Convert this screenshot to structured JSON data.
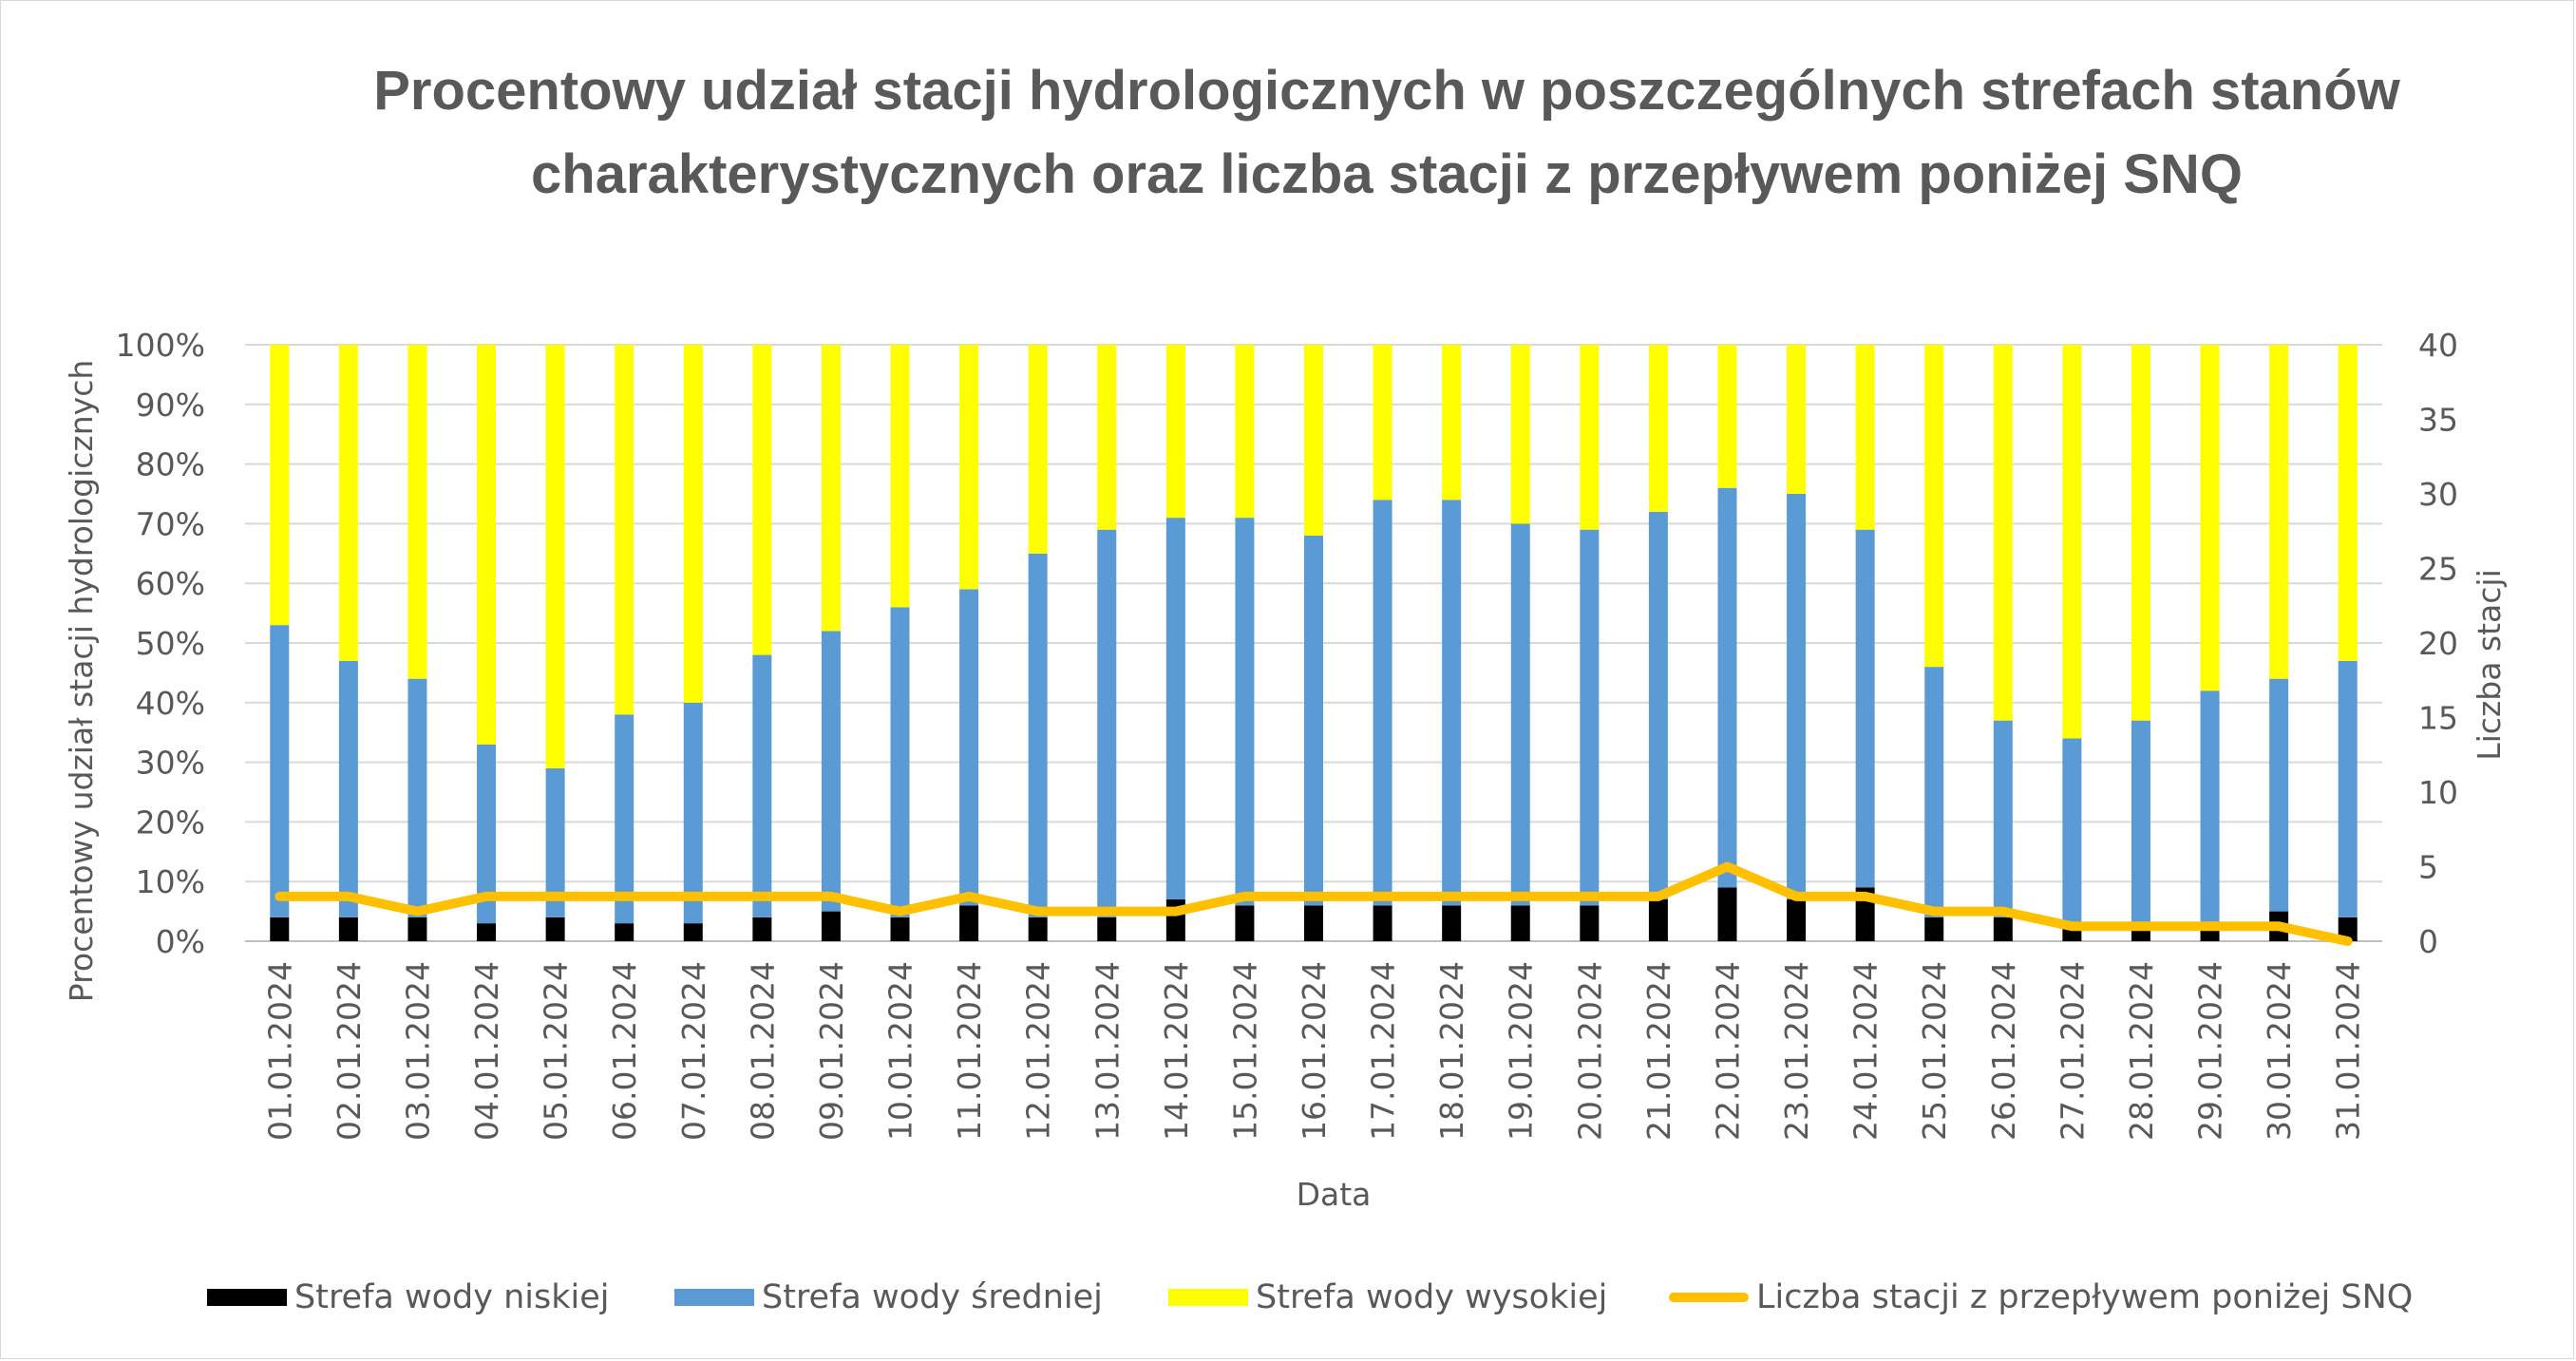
{
  "chart_data": {
    "type": "bar",
    "stacked": true,
    "title": "Procentowy udział stacji hydrologicznych w poszczególnych strefach stanów charakterystycznych oraz liczba stacji z przepływem poniżej SNQ",
    "xlabel": "Data",
    "ylabel": "Procentowy udział stacji hydrologicznych",
    "ylabel_right": "Liczba stacji",
    "ylim": [
      0,
      100
    ],
    "ylim_right": [
      0,
      40
    ],
    "yticks": [
      "0%",
      "10%",
      "20%",
      "30%",
      "40%",
      "50%",
      "60%",
      "70%",
      "80%",
      "90%",
      "100%"
    ],
    "yticks_right": [
      "0",
      "5",
      "10",
      "15",
      "20",
      "25",
      "30",
      "35",
      "40"
    ],
    "grid": true,
    "legend_position": "bottom",
    "categories": [
      "01.01.2024",
      "02.01.2024",
      "03.01.2024",
      "04.01.2024",
      "05.01.2024",
      "06.01.2024",
      "07.01.2024",
      "08.01.2024",
      "09.01.2024",
      "10.01.2024",
      "11.01.2024",
      "12.01.2024",
      "13.01.2024",
      "14.01.2024",
      "15.01.2024",
      "16.01.2024",
      "17.01.2024",
      "18.01.2024",
      "19.01.2024",
      "20.01.2024",
      "21.01.2024",
      "22.01.2024",
      "23.01.2024",
      "24.01.2024",
      "25.01.2024",
      "26.01.2024",
      "27.01.2024",
      "28.01.2024",
      "29.01.2024",
      "30.01.2024",
      "31.01.2024"
    ],
    "series": [
      {
        "name": "Strefa wody niskiej",
        "kind": "bar",
        "axis": "left",
        "color": "#000000",
        "values": [
          4,
          4,
          4,
          3,
          4,
          3,
          3,
          4,
          5,
          4,
          6,
          4,
          4,
          7,
          6,
          6,
          6,
          6,
          6,
          6,
          7,
          9,
          7,
          9,
          4,
          4,
          3,
          3,
          3,
          5,
          4
        ]
      },
      {
        "name": "Strefa wody średniej",
        "kind": "bar",
        "axis": "left",
        "color": "#5b9bd5",
        "values": [
          49,
          43,
          40,
          30,
          25,
          35,
          37,
          44,
          47,
          52,
          53,
          61,
          65,
          64,
          65,
          62,
          68,
          68,
          64,
          63,
          65,
          67,
          68,
          60,
          42,
          33,
          31,
          34,
          39,
          39,
          43
        ]
      },
      {
        "name": "Strefa wody wysokiej",
        "kind": "bar",
        "axis": "left",
        "color": "#ffff00",
        "values": [
          47,
          53,
          56,
          67,
          71,
          62,
          60,
          52,
          48,
          44,
          41,
          35,
          31,
          29,
          29,
          32,
          26,
          26,
          30,
          31,
          28,
          24,
          25,
          31,
          54,
          63,
          66,
          63,
          58,
          56,
          53
        ]
      },
      {
        "name": "Liczba stacji z przepływem poniżej SNQ",
        "kind": "line",
        "axis": "right",
        "color": "#ffc000",
        "values": [
          3,
          3,
          2,
          3,
          3,
          3,
          3,
          3,
          3,
          2,
          3,
          2,
          2,
          2,
          3,
          3,
          3,
          3,
          3,
          3,
          3,
          5,
          3,
          3,
          2,
          2,
          1,
          1,
          1,
          1,
          0
        ]
      }
    ]
  }
}
